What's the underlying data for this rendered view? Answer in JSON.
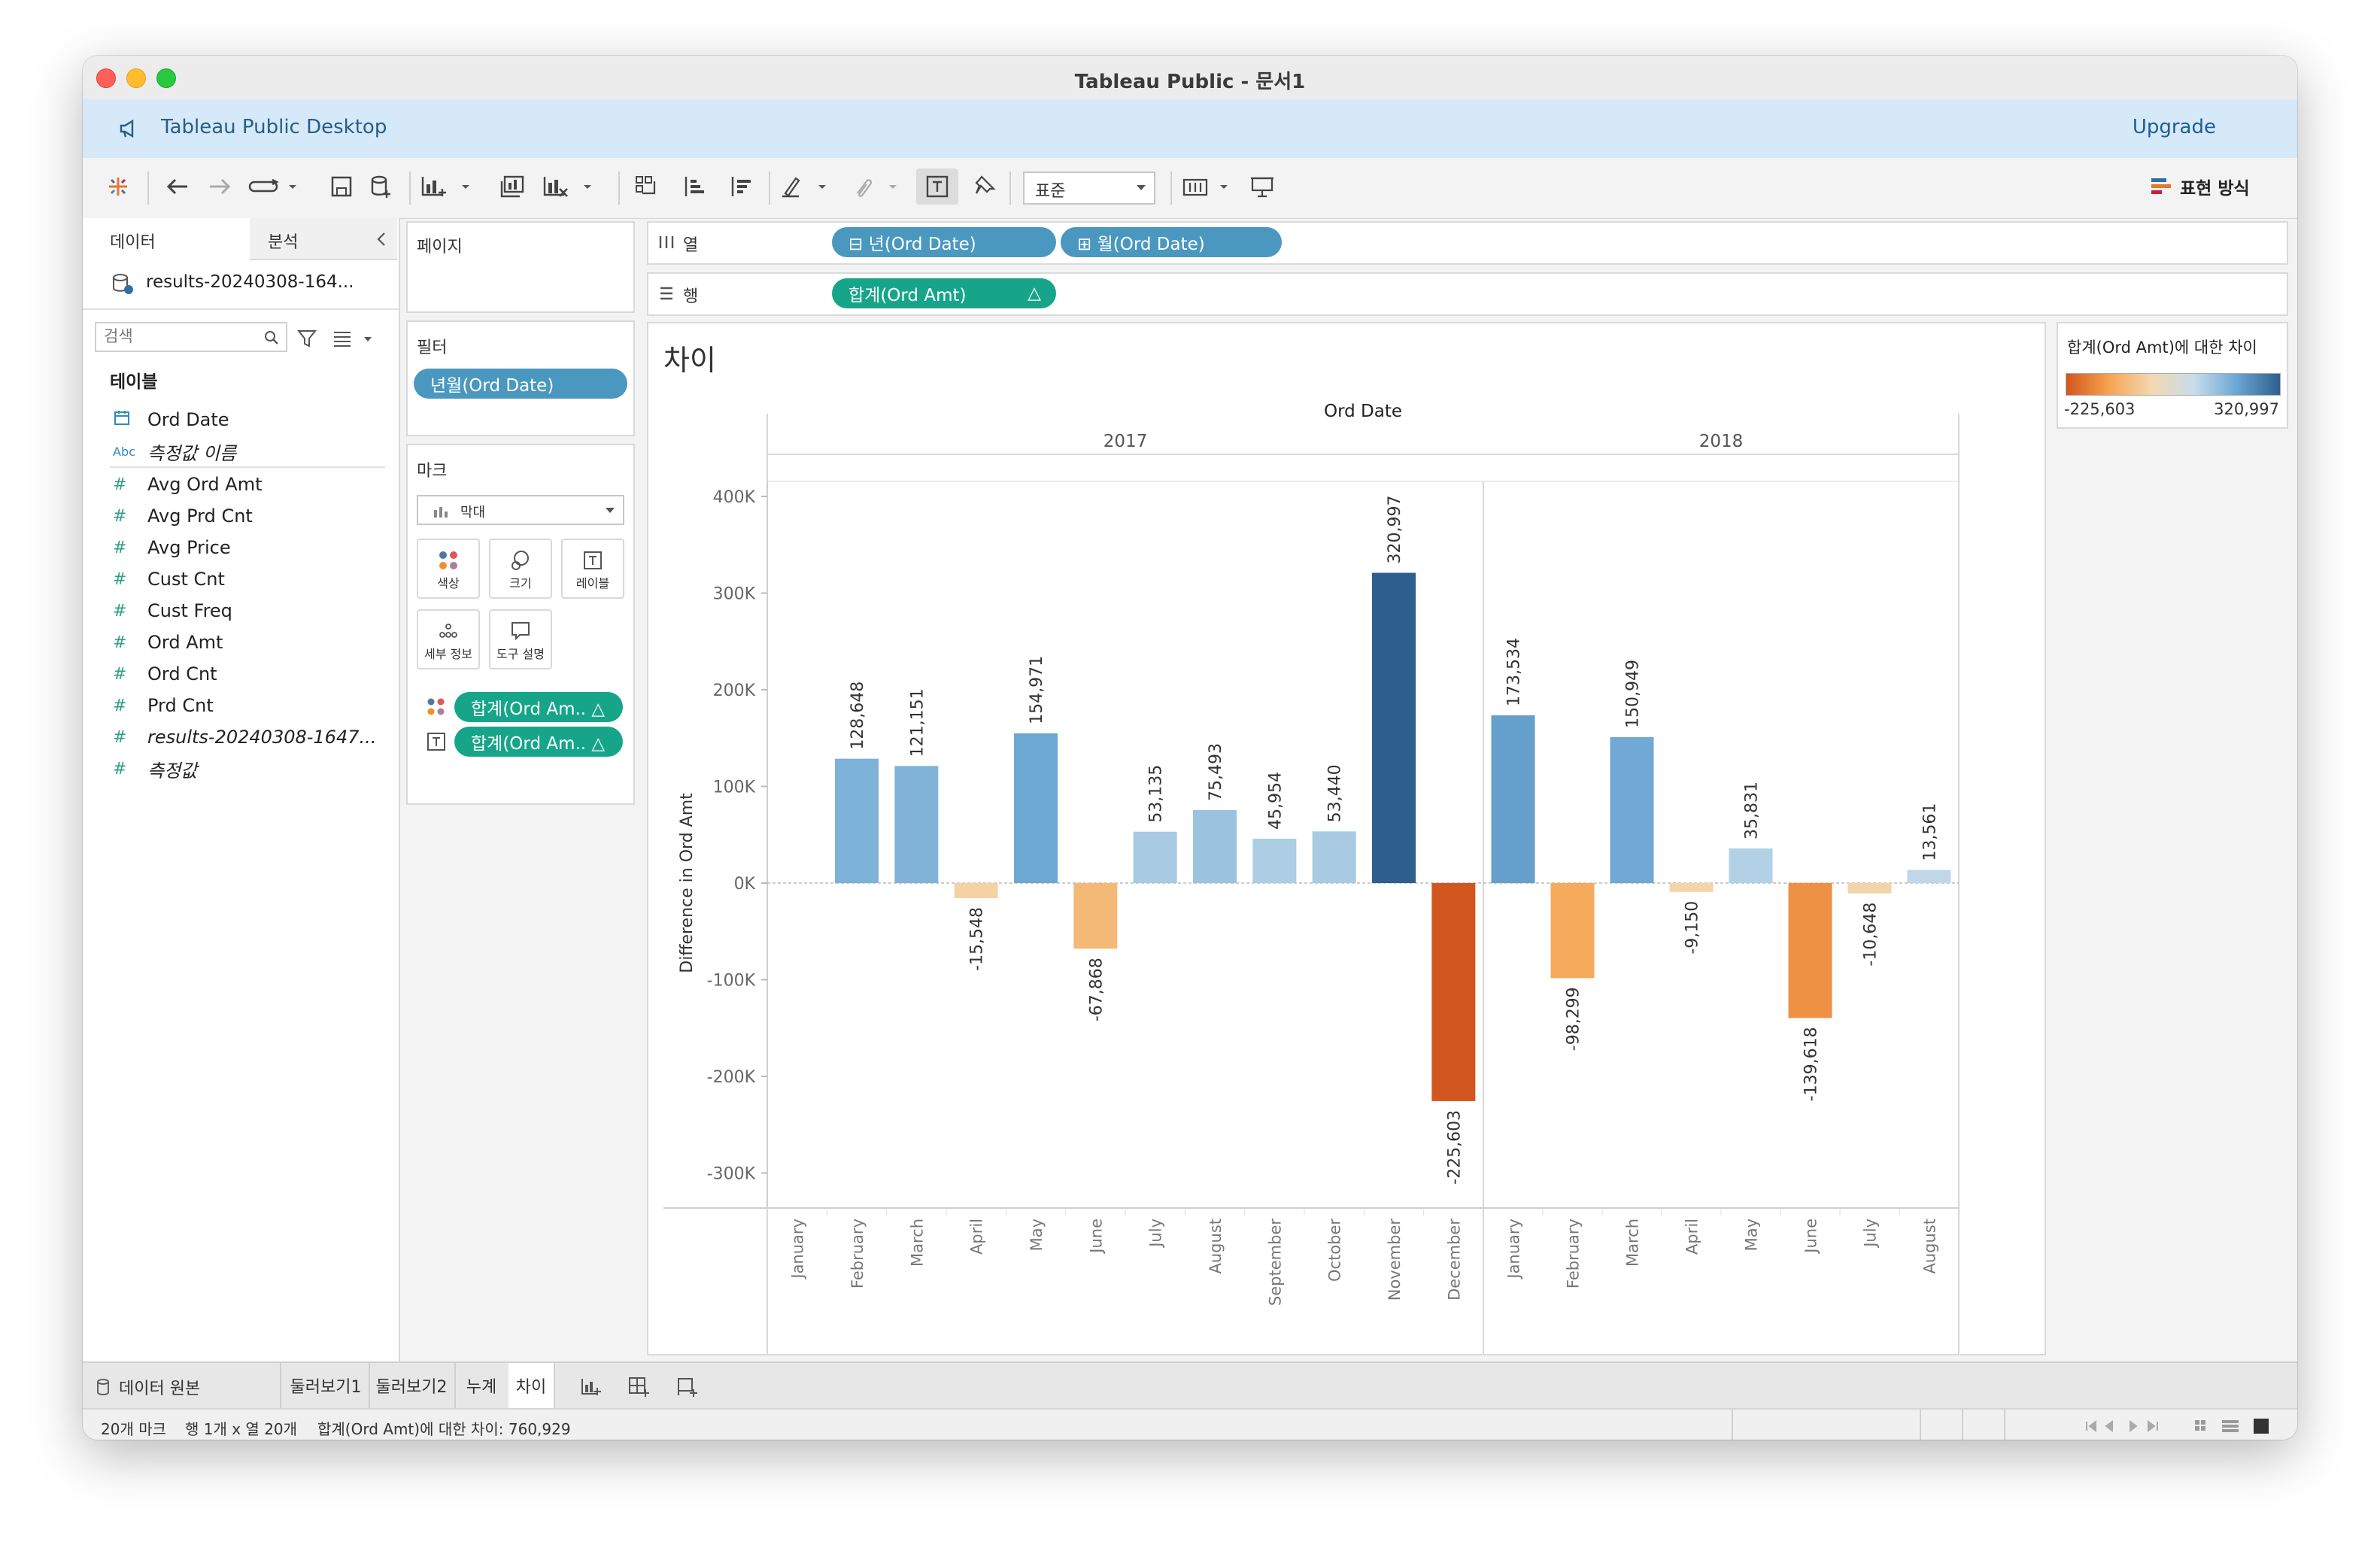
{
  "window": {
    "title": "Tableau Public - 문서1"
  },
  "banner": {
    "label": "Tableau Public Desktop",
    "upgrade": "Upgrade"
  },
  "toolbar": {
    "format_select": "표준",
    "show_me": "표현 방식"
  },
  "left_panel": {
    "tab_data": "데이터",
    "tab_analysis": "분석",
    "datasource": "results-20240308-164...",
    "search_placeholder": "검색",
    "tables_header": "테이블",
    "fields": [
      {
        "type": "date",
        "name": "Ord Date",
        "italic": false
      },
      {
        "type": "abc",
        "name": "측정값 이름",
        "italic": true
      },
      {
        "type": "num",
        "name": "Avg Ord Amt",
        "italic": false
      },
      {
        "type": "num",
        "name": "Avg Prd Cnt",
        "italic": false
      },
      {
        "type": "num",
        "name": "Avg Price",
        "italic": false
      },
      {
        "type": "num",
        "name": "Cust Cnt",
        "italic": false
      },
      {
        "type": "num",
        "name": "Cust Freq",
        "italic": false
      },
      {
        "type": "num",
        "name": "Ord Amt",
        "italic": false
      },
      {
        "type": "num",
        "name": "Ord Cnt",
        "italic": false
      },
      {
        "type": "num",
        "name": "Prd Cnt",
        "italic": false
      },
      {
        "type": "num",
        "name": "results-20240308-1647...",
        "italic": true
      },
      {
        "type": "num",
        "name": "측정값",
        "italic": true
      }
    ]
  },
  "cards": {
    "pages": "페이지",
    "filters": "필터",
    "filter_pill": "년월(Ord Date)",
    "marks": "마크",
    "mark_type": "막대",
    "mark_buttons": [
      "색상",
      "크기",
      "레이블",
      "세부 정보",
      "도구 설명"
    ],
    "mark_pills": [
      "합계(Ord Am.. △",
      "합계(Ord Am.. △"
    ]
  },
  "shelves": {
    "columns_label": "열",
    "rows_label": "행",
    "columns_pills": [
      "⊟ 년(Ord Date)",
      "⊞ 월(Ord Date)"
    ],
    "rows_pills": [
      "합계(Ord Amt)",
      "△"
    ]
  },
  "legend": {
    "title": "합계(Ord Amt)에 대한 차이",
    "min": "-225,603",
    "max": "320,997",
    "colors": [
      "#d2561f",
      "#f7a350",
      "#f3d9b1",
      "#c7dceb",
      "#6aa6d3",
      "#2d5e8e"
    ]
  },
  "chart_data": {
    "type": "bar",
    "title": "차이",
    "column_header": "Ord Date",
    "ylabel": "Difference in Ord Amt",
    "ylim": [
      -340000,
      430000
    ],
    "yticks": [
      400000,
      300000,
      200000,
      100000,
      0,
      -100000,
      -200000,
      -300000
    ],
    "ytick_labels": [
      "400K",
      "300K",
      "200K",
      "100K",
      "0K",
      "-100K",
      "-200K",
      "-300K"
    ],
    "grid": false,
    "panes": [
      {
        "year": "2017",
        "categories": [
          "January",
          "February",
          "March",
          "April",
          "May",
          "June",
          "July",
          "August",
          "September",
          "October",
          "November",
          "December"
        ],
        "values": [
          null,
          128648,
          121151,
          -15548,
          154971,
          -67868,
          53135,
          75493,
          45954,
          53440,
          320997,
          -225603
        ],
        "labels": [
          "",
          "128,648",
          "121,151",
          "-15,548",
          "154,971",
          "-67,868",
          "53,135",
          "75,493",
          "45,954",
          "53,440",
          "320,997",
          "-225,603"
        ]
      },
      {
        "year": "2018",
        "categories": [
          "January",
          "February",
          "March",
          "April",
          "May",
          "June",
          "July",
          "August"
        ],
        "values": [
          173534,
          -98299,
          150949,
          -9150,
          35831,
          -139618,
          -10648,
          13561
        ],
        "labels": [
          "173,534",
          "-98,299",
          "150,949",
          "-9,150",
          "35,831",
          "-139,618",
          "-10,648",
          "13,561"
        ]
      }
    ]
  },
  "sheet_tabs": {
    "datasource": "데이터 원본",
    "tabs": [
      "둘러보기1",
      "둘러보기2",
      "누계",
      "차이"
    ],
    "active": "차이"
  },
  "status": {
    "marks": "20개 마크",
    "rows_cols": "행 1개 x 열 20개",
    "sum": "합계(Ord Amt)에 대한 차이: 760,929"
  }
}
